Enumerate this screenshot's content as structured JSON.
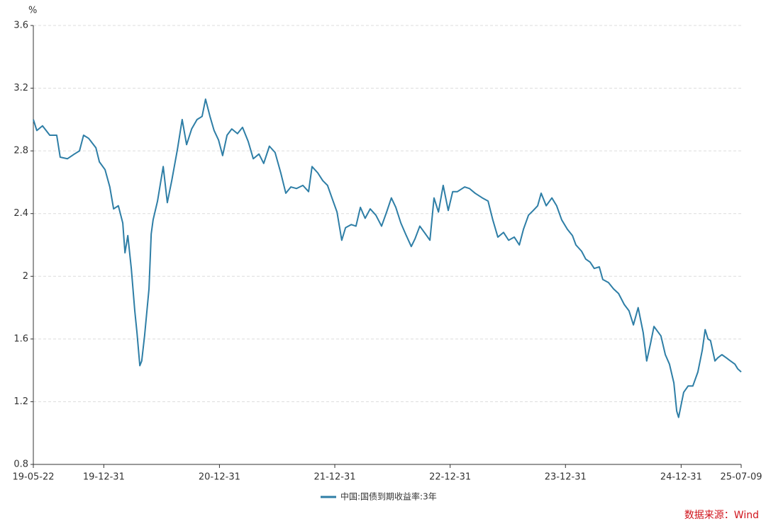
{
  "chart_data": {
    "type": "line",
    "y_unit": "%",
    "source": "数据来源：Wind",
    "legend": "bottom",
    "grid": true,
    "xlim": [
      "19-05-22",
      "25-07-09"
    ],
    "xticks": [
      "19-05-22",
      "19-12-31",
      "20-12-31",
      "21-12-31",
      "22-12-31",
      "23-12-31",
      "24-12-31",
      "25-07-09"
    ],
    "ylim": [
      0.8,
      3.6
    ],
    "yticks": [
      0.8,
      1.2,
      1.6,
      2,
      2.4,
      2.8,
      3.2,
      3.6
    ],
    "x": [
      "19-05-22",
      "19-06-02",
      "19-06-20",
      "19-07-13",
      "19-08-04",
      "19-08-15",
      "19-09-07",
      "19-09-29",
      "19-10-15",
      "19-10-28",
      "19-11-13",
      "19-12-06",
      "19-12-17",
      "20-01-04",
      "20-01-19",
      "20-01-31",
      "20-02-15",
      "20-02-29",
      "20-03-07",
      "20-03-16",
      "20-03-27",
      "20-04-07",
      "20-04-14",
      "20-04-23",
      "20-04-29",
      "20-05-08",
      "20-05-22",
      "20-05-29",
      "20-06-04",
      "20-06-18",
      "20-07-06",
      "20-07-19",
      "20-08-02",
      "20-08-20",
      "20-09-04",
      "20-09-18",
      "20-10-04",
      "20-10-21",
      "20-11-06",
      "20-11-17",
      "20-12-01",
      "20-12-14",
      "20-12-28",
      "21-01-10",
      "21-01-24",
      "21-02-08",
      "21-02-26",
      "21-03-14",
      "21-04-01",
      "21-04-17",
      "21-05-05",
      "21-05-20",
      "21-06-07",
      "21-06-25",
      "21-07-13",
      "21-07-29",
      "21-08-14",
      "21-09-01",
      "21-09-21",
      "21-10-09",
      "21-10-20",
      "21-11-07",
      "21-11-23",
      "21-12-08",
      "21-12-22",
      "22-01-07",
      "22-01-22",
      "22-02-03",
      "22-02-21",
      "22-03-08",
      "22-03-22",
      "22-04-06",
      "22-04-22",
      "22-05-10",
      "22-05-28",
      "22-06-13",
      "22-06-28",
      "22-07-12",
      "22-07-28",
      "22-08-12",
      "22-08-30",
      "22-09-11",
      "22-09-26",
      "22-10-14",
      "22-10-28",
      "22-11-10",
      "22-11-24",
      "22-12-09",
      "22-12-25",
      "23-01-08",
      "23-01-23",
      "23-02-15",
      "23-03-02",
      "23-03-20",
      "23-04-12",
      "23-04-30",
      "23-05-15",
      "23-05-31",
      "23-06-18",
      "23-07-04",
      "23-07-22",
      "23-08-07",
      "23-08-20",
      "23-09-05",
      "23-09-20",
      "23-10-04",
      "23-10-15",
      "23-10-31",
      "23-11-18",
      "23-12-03",
      "23-12-19",
      "24-01-06",
      "24-01-22",
      "24-02-02",
      "24-02-20",
      "24-03-04",
      "24-03-18",
      "24-03-31",
      "24-04-16",
      "24-04-27",
      "24-05-15",
      "24-05-31",
      "24-06-16",
      "24-07-04",
      "24-07-19",
      "24-08-02",
      "24-08-17",
      "24-09-02",
      "24-09-13",
      "24-09-25",
      "24-10-06",
      "24-10-17",
      "24-10-28",
      "24-11-11",
      "24-11-24",
      "24-12-08",
      "24-12-17",
      "24-12-23",
      "24-12-30",
      "25-01-08",
      "25-01-22",
      "25-02-06",
      "25-02-22",
      "25-03-08",
      "25-03-17",
      "25-03-26",
      "25-04-03",
      "25-04-17",
      "25-04-26",
      "25-05-09",
      "25-05-23",
      "25-06-05",
      "25-06-19",
      "25-06-28",
      "25-07-09"
    ],
    "series": [
      {
        "name": "中国:国债到期收益率:3年",
        "color": "#2e7ea6",
        "values": [
          3.0,
          2.93,
          2.96,
          2.9,
          2.9,
          2.76,
          2.75,
          2.78,
          2.8,
          2.9,
          2.88,
          2.82,
          2.73,
          2.68,
          2.57,
          2.43,
          2.45,
          2.34,
          2.15,
          2.26,
          2.05,
          1.78,
          1.64,
          1.43,
          1.46,
          1.62,
          1.92,
          2.27,
          2.36,
          2.48,
          2.7,
          2.47,
          2.61,
          2.81,
          3.0,
          2.84,
          2.94,
          3.0,
          3.02,
          3.13,
          3.02,
          2.93,
          2.87,
          2.77,
          2.9,
          2.94,
          2.91,
          2.95,
          2.86,
          2.75,
          2.78,
          2.72,
          2.83,
          2.79,
          2.66,
          2.53,
          2.57,
          2.56,
          2.58,
          2.54,
          2.7,
          2.66,
          2.61,
          2.58,
          2.5,
          2.41,
          2.23,
          2.31,
          2.33,
          2.32,
          2.44,
          2.37,
          2.43,
          2.39,
          2.32,
          2.41,
          2.5,
          2.44,
          2.34,
          2.27,
          2.19,
          2.24,
          2.32,
          2.27,
          2.23,
          2.5,
          2.41,
          2.58,
          2.42,
          2.54,
          2.54,
          2.57,
          2.56,
          2.53,
          2.5,
          2.48,
          2.36,
          2.25,
          2.28,
          2.23,
          2.25,
          2.2,
          2.3,
          2.39,
          2.42,
          2.45,
          2.53,
          2.45,
          2.5,
          2.45,
          2.36,
          2.3,
          2.26,
          2.2,
          2.16,
          2.11,
          2.09,
          2.05,
          2.06,
          1.98,
          1.96,
          1.92,
          1.89,
          1.82,
          1.78,
          1.69,
          1.8,
          1.64,
          1.46,
          1.57,
          1.68,
          1.65,
          1.62,
          1.5,
          1.44,
          1.32,
          1.14,
          1.1,
          1.17,
          1.26,
          1.3,
          1.3,
          1.39,
          1.53,
          1.66,
          1.6,
          1.59,
          1.46,
          1.48,
          1.5,
          1.48,
          1.46,
          1.44,
          1.41,
          1.39
        ]
      }
    ]
  }
}
